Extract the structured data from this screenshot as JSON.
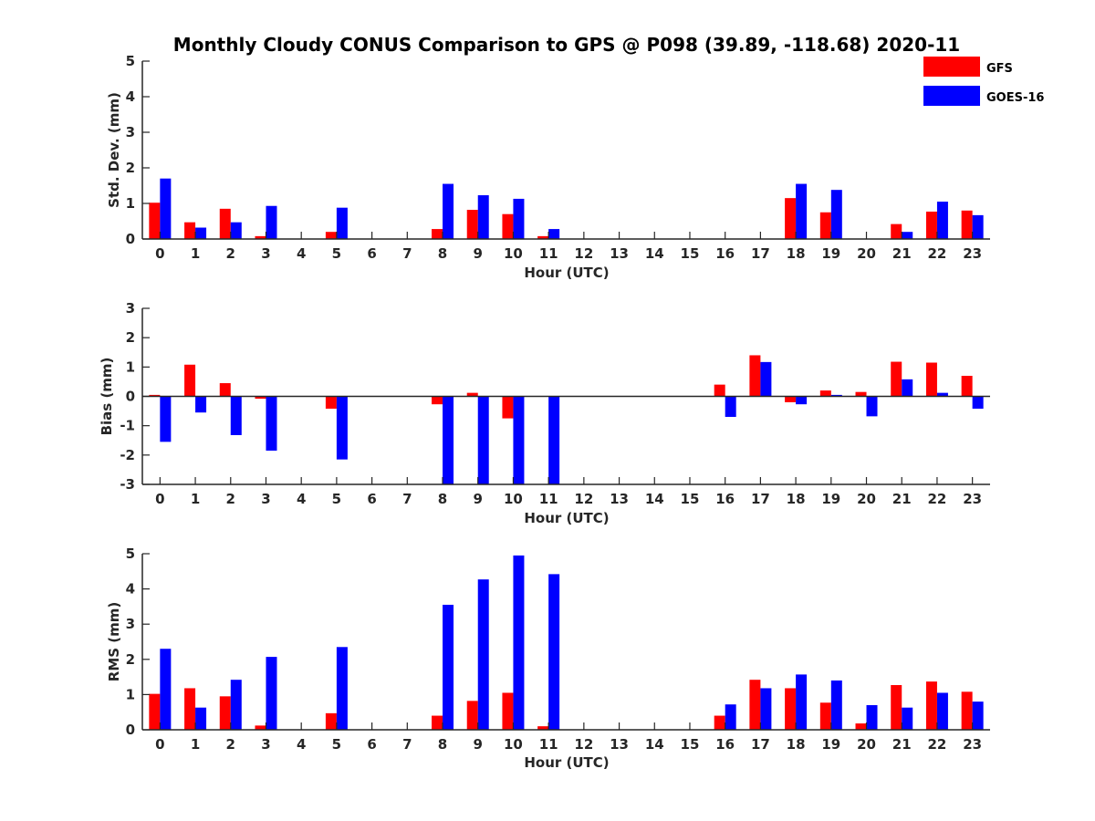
{
  "figure": {
    "title": "Monthly Cloudy CONUS Comparison to GPS @ P098 (39.89, -118.68) 2020-11"
  },
  "legend": {
    "placement": "top-right",
    "entries": [
      {
        "label": "GFS",
        "color": "#ff0000"
      },
      {
        "label": "GOES-16",
        "color": "#0000ff"
      }
    ]
  },
  "chart_data": [
    {
      "type": "bar",
      "xlabel": "Hour (UTC)",
      "ylabel": "Std. Dev. (mm)",
      "ylim": [
        0,
        5
      ],
      "yticks": [
        0,
        1,
        2,
        3,
        4,
        5
      ],
      "categories": [
        "0",
        "1",
        "2",
        "3",
        "4",
        "5",
        "6",
        "7",
        "8",
        "9",
        "10",
        "11",
        "12",
        "13",
        "14",
        "15",
        "16",
        "17",
        "18",
        "19",
        "20",
        "21",
        "22",
        "23"
      ],
      "series": [
        {
          "name": "GFS",
          "color": "#ff0000",
          "values": [
            1.02,
            0.47,
            0.85,
            0.08,
            0,
            0.2,
            0,
            0,
            0.28,
            0.82,
            0.7,
            0.08,
            0,
            0,
            0,
            0,
            0,
            0,
            1.15,
            0.75,
            0,
            0.42,
            0.77,
            0.8
          ]
        },
        {
          "name": "GOES-16",
          "color": "#0000ff",
          "values": [
            1.7,
            0.32,
            0.47,
            0.93,
            0,
            0.88,
            0,
            0,
            1.55,
            1.23,
            1.13,
            0.28,
            0,
            0,
            0,
            0,
            0,
            0,
            1.55,
            1.38,
            0,
            0.2,
            1.05,
            0.67
          ]
        }
      ]
    },
    {
      "type": "bar",
      "xlabel": "Hour (UTC)",
      "ylabel": "Bias (mm)",
      "ylim": [
        -3,
        3
      ],
      "yticks": [
        -3,
        -2,
        -1,
        0,
        1,
        2,
        3
      ],
      "categories": [
        "0",
        "1",
        "2",
        "3",
        "4",
        "5",
        "6",
        "7",
        "8",
        "9",
        "10",
        "11",
        "12",
        "13",
        "14",
        "15",
        "16",
        "17",
        "18",
        "19",
        "20",
        "21",
        "22",
        "23"
      ],
      "series": [
        {
          "name": "GFS",
          "color": "#ff0000",
          "values": [
            0.05,
            1.08,
            0.45,
            -0.08,
            0,
            -0.42,
            0,
            0,
            -0.27,
            0.12,
            -0.75,
            0,
            0,
            0,
            0,
            0,
            0.4,
            1.4,
            -0.2,
            0.2,
            0.15,
            1.18,
            1.15,
            0.7
          ]
        },
        {
          "name": "GOES-16",
          "color": "#0000ff",
          "values": [
            -1.55,
            -0.55,
            -1.32,
            -1.85,
            0,
            -2.15,
            0,
            0,
            -3,
            -3,
            -3,
            -3,
            0,
            0,
            0,
            0,
            -0.7,
            1.17,
            -0.27,
            0.05,
            -0.68,
            0.58,
            0.12,
            -0.42
          ]
        }
      ]
    },
    {
      "type": "bar",
      "xlabel": "Hour (UTC)",
      "ylabel": "RMS (mm)",
      "ylim": [
        0,
        5
      ],
      "yticks": [
        0,
        1,
        2,
        3,
        4,
        5
      ],
      "categories": [
        "0",
        "1",
        "2",
        "3",
        "4",
        "5",
        "6",
        "7",
        "8",
        "9",
        "10",
        "11",
        "12",
        "13",
        "14",
        "15",
        "16",
        "17",
        "18",
        "19",
        "20",
        "21",
        "22",
        "23"
      ],
      "series": [
        {
          "name": "GFS",
          "color": "#ff0000",
          "values": [
            1.02,
            1.18,
            0.95,
            0.12,
            0,
            0.47,
            0,
            0,
            0.4,
            0.82,
            1.05,
            0.1,
            0,
            0,
            0,
            0,
            0.4,
            1.42,
            1.18,
            0.77,
            0.18,
            1.27,
            1.37,
            1.08
          ]
        },
        {
          "name": "GOES-16",
          "color": "#0000ff",
          "values": [
            2.3,
            0.63,
            1.42,
            2.07,
            0,
            2.35,
            0,
            0,
            3.55,
            4.27,
            4.95,
            4.42,
            0,
            0,
            0,
            0,
            0.72,
            1.18,
            1.57,
            1.4,
            0.7,
            0.63,
            1.05,
            0.8
          ]
        }
      ]
    }
  ]
}
